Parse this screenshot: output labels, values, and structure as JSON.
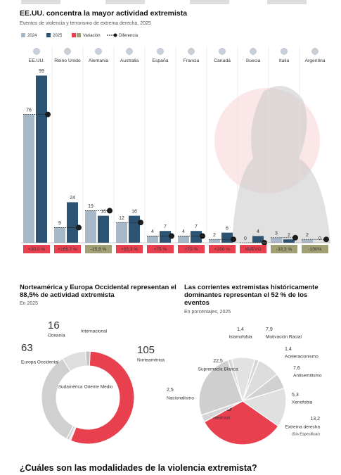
{
  "section_heading": "¿Cuáles son las modalidades de la violencia extremista?",
  "chart_data": [
    {
      "type": "bar",
      "title": "EE.UU. concentra la mayor actividad extremista",
      "subtitle": "Eventos de violencia y terrorismo de extrema derecha, 2025",
      "categories": [
        "EE.UU.",
        "Reino Unido",
        "Alemania",
        "Australia",
        "España",
        "Francia",
        "Canadá",
        "Suecia",
        "Italia",
        "Argentina"
      ],
      "series": [
        {
          "name": "2024",
          "color": "#a7b9c9",
          "values": [
            76,
            9,
            19,
            12,
            4,
            4,
            2,
            0,
            3,
            2
          ]
        },
        {
          "name": "2025",
          "color": "#2d5373",
          "values": [
            99,
            24,
            16,
            16,
            7,
            7,
            6,
            4,
            2,
            0
          ]
        }
      ],
      "variation": {
        "name": "Variación",
        "positive_color": "#e8404f",
        "negative_color": "#a19f74",
        "values": [
          30.3,
          166.7,
          -15.8,
          33.3,
          75,
          75,
          200,
          null,
          -33.3,
          -100
        ],
        "value_labels": [
          "+30,3 %",
          "+166,7 %",
          "-15,8 %",
          "+33,3 %",
          "+75 %",
          "+75 %",
          "+200 %",
          "NUEVO",
          "-33,3 %",
          "-100%"
        ]
      },
      "difference": {
        "name": "Diferencia",
        "color": "#1a1a1a",
        "values": [
          23,
          15,
          -3,
          4,
          3,
          3,
          4,
          4,
          -1,
          -2
        ],
        "value_labels": [
          "+23",
          "+15",
          "-3",
          "+4",
          "+3",
          "+3",
          "+4",
          "+4",
          "-1",
          "-2"
        ]
      },
      "ylim": [
        0,
        100
      ]
    },
    {
      "type": "donut",
      "title": "Norteamérica y Europa Occidental representan el 88,5% de actividad extremista",
      "subtitle": "En 2025",
      "categories": [
        "Norteamérica",
        "Sudamérica",
        "Oriente Medio",
        "Europa Occidental",
        "Oceanía",
        "Internacional"
      ],
      "values": [
        105,
        1,
        2,
        63,
        16,
        3
      ],
      "value_labels": [
        "105",
        null,
        null,
        "63",
        "16",
        null
      ],
      "colors": [
        "#e8404f",
        "#e6e6e6",
        "#d6d6d6",
        "#d0d0d0",
        "#dedede",
        "#c4c4c4"
      ]
    },
    {
      "type": "pie",
      "title": "Las corrientes extremistas históricamente dominantes representan el 52 % de los eventos",
      "subtitle": "En porcentajes, 2025",
      "categories": [
        "Islamofobia",
        "Motivación Racial",
        "Aceleracionismo",
        "Antisemitismo",
        "Xenofobia",
        "Extrema derecha",
        "Neonazi",
        "Nacionalismo",
        "Supremacía Blanca"
      ],
      "category_sublabels": [
        null,
        null,
        null,
        null,
        null,
        "(Sin Especificar)",
        null,
        null,
        null
      ],
      "values": [
        1.4,
        7.9,
        1.4,
        7.6,
        5.3,
        13.2,
        29.5,
        2.5,
        22.5
      ],
      "value_labels": [
        "1,4",
        "7,9",
        "1,4",
        "7,6",
        "5,3",
        "13,2",
        "29,5",
        "2,5",
        "22,5"
      ],
      "colors": [
        "#d9d9d9",
        "#e2e2e2",
        "#d4d4d4",
        "#dcdcdc",
        "#d1d1d1",
        "#e0e0e0",
        "#e8404f",
        "#d6d6d6",
        "#cfcfcf"
      ]
    }
  ]
}
